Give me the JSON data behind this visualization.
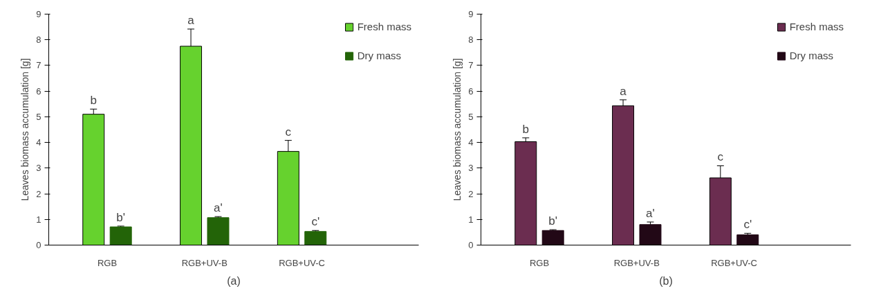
{
  "chart_data": [
    {
      "type": "bar",
      "ylabel": "Leaves biomass accumulation [g]",
      "categories": [
        "RGB",
        "RGB+UV-B",
        "RGB+UV-C"
      ],
      "ylim": [
        0,
        9
      ],
      "yticks": [
        0,
        1,
        2,
        3,
        4,
        5,
        6,
        7,
        8,
        9
      ],
      "grid": false,
      "legend": "top right",
      "series": [
        {
          "name": "Fresh mass",
          "color": "#66d22e",
          "values": [
            5.1,
            7.75,
            3.65
          ],
          "errors": [
            0.2,
            0.67,
            0.43
          ]
        },
        {
          "name": "Dry mass",
          "color": "#236408",
          "values": [
            0.71,
            1.07,
            0.53
          ],
          "errors": [
            0.03,
            0.04,
            0.04
          ]
        }
      ],
      "annotations": [
        {
          "text": "b",
          "x": "RGB",
          "y": 5.1
        },
        {
          "text": "a",
          "x": "RGB+UV-B",
          "y": 7.75
        },
        {
          "text": "c",
          "x": "RGB+UV-C",
          "y": 3.65
        },
        {
          "text": "b'",
          "x": "RGB",
          "y": 0.71
        },
        {
          "text": "a'",
          "x": "RGB+UV-B",
          "y": 1.07
        },
        {
          "text": "c'",
          "x": "RGB+UV-C",
          "y": 0.53
        },
        "(a)"
      ]
    },
    {
      "type": "bar",
      "ylabel": "Leaves biomass accumulation [g]",
      "categories": [
        "RGB",
        "RGB+UV-B",
        "RGB+UV-C"
      ],
      "ylim": [
        0,
        9
      ],
      "yticks": [
        0,
        1,
        2,
        3,
        4,
        5,
        6,
        7,
        8,
        9
      ],
      "grid": false,
      "legend": "top right",
      "series": [
        {
          "name": "Fresh mass",
          "color": "#6b2d50",
          "values": [
            4.03,
            5.43,
            2.62
          ],
          "errors": [
            0.15,
            0.23,
            0.47
          ]
        },
        {
          "name": "Dry mass",
          "color": "#220816",
          "values": [
            0.57,
            0.8,
            0.4
          ],
          "errors": [
            0.03,
            0.1,
            0.06
          ]
        }
      ],
      "annotations": [
        {
          "text": "b",
          "x": "RGB",
          "y": 4.03
        },
        {
          "text": "a",
          "x": "RGB+UV-B",
          "y": 5.43
        },
        {
          "text": "c",
          "x": "RGB+UV-C",
          "y": 2.62
        },
        {
          "text": "b'",
          "x": "RGB",
          "y": 0.57
        },
        {
          "text": "a'",
          "x": "RGB+UV-B",
          "y": 0.8
        },
        {
          "text": "c'",
          "x": "RGB+UV-C",
          "y": 0.4
        },
        "(b)"
      ]
    }
  ]
}
